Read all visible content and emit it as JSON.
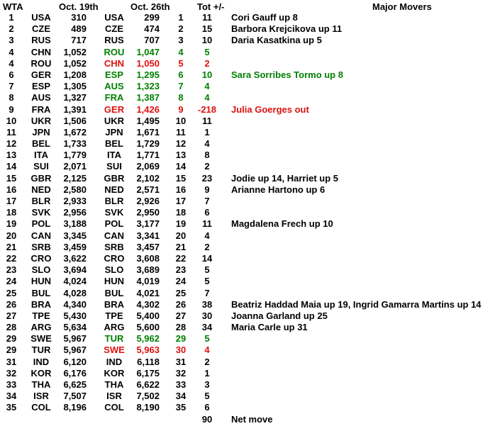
{
  "header": {
    "col_rank": "WTA",
    "col_oct19": "Oct. 19th",
    "col_oct26": "Oct. 26th",
    "col_tot": "Tot +/-",
    "col_movers": "Major Movers"
  },
  "colors": {
    "text": "#000000",
    "up_green": "#008000",
    "down_red": "#dd1111"
  },
  "rows": [
    {
      "rank": "1",
      "country_19": "USA",
      "pts_19": "310",
      "country_26": "USA",
      "pts_26": "299",
      "rank_26": "1",
      "tot": "11",
      "mover": "Cori Gauff up 8",
      "status": "same"
    },
    {
      "rank": "2",
      "country_19": "CZE",
      "pts_19": "489",
      "country_26": "CZE",
      "pts_26": "474",
      "rank_26": "2",
      "tot": "15",
      "mover": "Barbora Krejcikova up 11",
      "status": "same"
    },
    {
      "rank": "3",
      "country_19": "RUS",
      "pts_19": "717",
      "country_26": "RUS",
      "pts_26": "707",
      "rank_26": "3",
      "tot": "10",
      "mover": "Daria Kasatkina up 5",
      "status": "same"
    },
    {
      "rank": "4",
      "country_19": "CHN",
      "pts_19": "1,052",
      "country_26": "ROU",
      "pts_26": "1,047",
      "rank_26": "4",
      "tot": "5",
      "mover": "",
      "status": "up"
    },
    {
      "rank": "4",
      "country_19": "ROU",
      "pts_19": "1,052",
      "country_26": "CHN",
      "pts_26": "1,050",
      "rank_26": "5",
      "tot": "2",
      "mover": "",
      "status": "down"
    },
    {
      "rank": "6",
      "country_19": "GER",
      "pts_19": "1,208",
      "country_26": "ESP",
      "pts_26": "1,295",
      "rank_26": "6",
      "tot": "10",
      "mover": "Sara Sorribes Tormo up 8",
      "status": "up"
    },
    {
      "rank": "7",
      "country_19": "ESP",
      "pts_19": "1,305",
      "country_26": "AUS",
      "pts_26": "1,323",
      "rank_26": "7",
      "tot": "4",
      "mover": "",
      "status": "up"
    },
    {
      "rank": "8",
      "country_19": "AUS",
      "pts_19": "1,327",
      "country_26": "FRA",
      "pts_26": "1,387",
      "rank_26": "8",
      "tot": "4",
      "mover": "",
      "status": "up"
    },
    {
      "rank": "9",
      "country_19": "FRA",
      "pts_19": "1,391",
      "country_26": "GER",
      "pts_26": "1,426",
      "rank_26": "9",
      "tot": "-218",
      "mover": "Julia Goerges out",
      "status": "down"
    },
    {
      "rank": "10",
      "country_19": "UKR",
      "pts_19": "1,506",
      "country_26": "UKR",
      "pts_26": "1,495",
      "rank_26": "10",
      "tot": "11",
      "mover": "",
      "status": "same"
    },
    {
      "rank": "11",
      "country_19": "JPN",
      "pts_19": "1,672",
      "country_26": "JPN",
      "pts_26": "1,671",
      "rank_26": "11",
      "tot": "1",
      "mover": "",
      "status": "same"
    },
    {
      "rank": "12",
      "country_19": "BEL",
      "pts_19": "1,733",
      "country_26": "BEL",
      "pts_26": "1,729",
      "rank_26": "12",
      "tot": "4",
      "mover": "",
      "status": "same"
    },
    {
      "rank": "13",
      "country_19": "ITA",
      "pts_19": "1,779",
      "country_26": "ITA",
      "pts_26": "1,771",
      "rank_26": "13",
      "tot": "8",
      "mover": "",
      "status": "same"
    },
    {
      "rank": "14",
      "country_19": "SUI",
      "pts_19": "2,071",
      "country_26": "SUI",
      "pts_26": "2,069",
      "rank_26": "14",
      "tot": "2",
      "mover": "",
      "status": "same"
    },
    {
      "rank": "15",
      "country_19": "GBR",
      "pts_19": "2,125",
      "country_26": "GBR",
      "pts_26": "2,102",
      "rank_26": "15",
      "tot": "23",
      "mover": "Jodie up 14, Harriet up 5",
      "status": "same"
    },
    {
      "rank": "16",
      "country_19": "NED",
      "pts_19": "2,580",
      "country_26": "NED",
      "pts_26": "2,571",
      "rank_26": "16",
      "tot": "9",
      "mover": "Arianne Hartono up 6",
      "status": "same"
    },
    {
      "rank": "17",
      "country_19": "BLR",
      "pts_19": "2,933",
      "country_26": "BLR",
      "pts_26": "2,926",
      "rank_26": "17",
      "tot": "7",
      "mover": "",
      "status": "same"
    },
    {
      "rank": "18",
      "country_19": "SVK",
      "pts_19": "2,956",
      "country_26": "SVK",
      "pts_26": "2,950",
      "rank_26": "18",
      "tot": "6",
      "mover": "",
      "status": "same"
    },
    {
      "rank": "19",
      "country_19": "POL",
      "pts_19": "3,188",
      "country_26": "POL",
      "pts_26": "3,177",
      "rank_26": "19",
      "tot": "11",
      "mover": "Magdalena Frech up 10",
      "status": "same"
    },
    {
      "rank": "20",
      "country_19": "CAN",
      "pts_19": "3,345",
      "country_26": "CAN",
      "pts_26": "3,341",
      "rank_26": "20",
      "tot": "4",
      "mover": "",
      "status": "same"
    },
    {
      "rank": "21",
      "country_19": "SRB",
      "pts_19": "3,459",
      "country_26": "SRB",
      "pts_26": "3,457",
      "rank_26": "21",
      "tot": "2",
      "mover": "",
      "status": "same"
    },
    {
      "rank": "22",
      "country_19": "CRO",
      "pts_19": "3,622",
      "country_26": "CRO",
      "pts_26": "3,608",
      "rank_26": "22",
      "tot": "14",
      "mover": "",
      "status": "same"
    },
    {
      "rank": "23",
      "country_19": "SLO",
      "pts_19": "3,694",
      "country_26": "SLO",
      "pts_26": "3,689",
      "rank_26": "23",
      "tot": "5",
      "mover": "",
      "status": "same"
    },
    {
      "rank": "24",
      "country_19": "HUN",
      "pts_19": "4,024",
      "country_26": "HUN",
      "pts_26": "4,019",
      "rank_26": "24",
      "tot": "5",
      "mover": "",
      "status": "same"
    },
    {
      "rank": "25",
      "country_19": "BUL",
      "pts_19": "4,028",
      "country_26": "BUL",
      "pts_26": "4,021",
      "rank_26": "25",
      "tot": "7",
      "mover": "",
      "status": "same"
    },
    {
      "rank": "26",
      "country_19": "BRA",
      "pts_19": "4,340",
      "country_26": "BRA",
      "pts_26": "4,302",
      "rank_26": "26",
      "tot": "38",
      "mover": "Beatriz Haddad Maia up 19, Ingrid Gamarra Martins up 14",
      "status": "same"
    },
    {
      "rank": "27",
      "country_19": "TPE",
      "pts_19": "5,430",
      "country_26": "TPE",
      "pts_26": "5,400",
      "rank_26": "27",
      "tot": "30",
      "mover": "Joanna Garland up 25",
      "status": "same"
    },
    {
      "rank": "28",
      "country_19": "ARG",
      "pts_19": "5,634",
      "country_26": "ARG",
      "pts_26": "5,600",
      "rank_26": "28",
      "tot": "34",
      "mover": "Maria Carle up 31",
      "status": "same"
    },
    {
      "rank": "29",
      "country_19": "SWE",
      "pts_19": "5,967",
      "country_26": "TUR",
      "pts_26": "5,962",
      "rank_26": "29",
      "tot": "5",
      "mover": "",
      "status": "up"
    },
    {
      "rank": "29",
      "country_19": "TUR",
      "pts_19": "5,967",
      "country_26": "SWE",
      "pts_26": "5,963",
      "rank_26": "30",
      "tot": "4",
      "mover": "",
      "status": "down"
    },
    {
      "rank": "31",
      "country_19": "IND",
      "pts_19": "6,120",
      "country_26": "IND",
      "pts_26": "6,118",
      "rank_26": "31",
      "tot": "2",
      "mover": "",
      "status": "same"
    },
    {
      "rank": "32",
      "country_19": "KOR",
      "pts_19": "6,176",
      "country_26": "KOR",
      "pts_26": "6,175",
      "rank_26": "32",
      "tot": "1",
      "mover": "",
      "status": "same"
    },
    {
      "rank": "33",
      "country_19": "THA",
      "pts_19": "6,625",
      "country_26": "THA",
      "pts_26": "6,622",
      "rank_26": "33",
      "tot": "3",
      "mover": "",
      "status": "same"
    },
    {
      "rank": "34",
      "country_19": "ISR",
      "pts_19": "7,507",
      "country_26": "ISR",
      "pts_26": "7,502",
      "rank_26": "34",
      "tot": "5",
      "mover": "",
      "status": "same"
    },
    {
      "rank": "35",
      "country_19": "COL",
      "pts_19": "8,196",
      "country_26": "COL",
      "pts_26": "8,190",
      "rank_26": "35",
      "tot": "6",
      "mover": "",
      "status": "same"
    }
  ],
  "net_row": {
    "tot": "90",
    "label": "Net move"
  }
}
